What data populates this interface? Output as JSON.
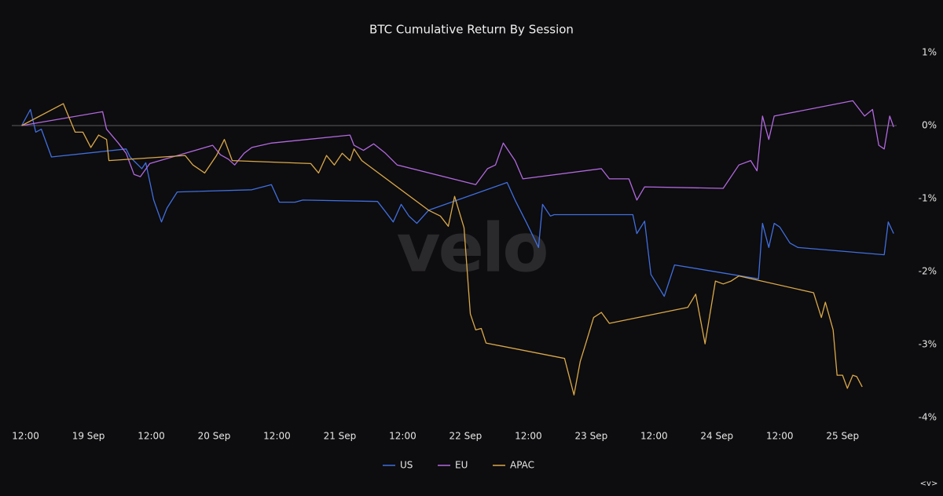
{
  "chart_data": {
    "type": "line",
    "title": "BTC Cumulative Return By Session",
    "watermark": "velo",
    "corner_label": "<v>",
    "xlim": [
      18.39,
      25.43
    ],
    "xticks": [
      {
        "value": 18.5,
        "label": "12:00"
      },
      {
        "value": 19,
        "label": "19 Sep"
      },
      {
        "value": 19.5,
        "label": "12:00"
      },
      {
        "value": 20,
        "label": "20 Sep"
      },
      {
        "value": 20.5,
        "label": "12:00"
      },
      {
        "value": 21,
        "label": "21 Sep"
      },
      {
        "value": 21.5,
        "label": "12:00"
      },
      {
        "value": 22,
        "label": "22 Sep"
      },
      {
        "value": 22.5,
        "label": "12:00"
      },
      {
        "value": 23,
        "label": "23 Sep"
      },
      {
        "value": 23.5,
        "label": "12:00"
      },
      {
        "value": 24,
        "label": "24 Sep"
      },
      {
        "value": 24.5,
        "label": "12:00"
      },
      {
        "value": 25,
        "label": "25 Sep"
      }
    ],
    "ylim": [
      -4,
      1
    ],
    "yticks": [
      {
        "value": 1,
        "label": "1%"
      },
      {
        "value": 0,
        "label": "0%"
      },
      {
        "value": -1,
        "label": "-1%"
      },
      {
        "value": -2,
        "label": "-2%"
      },
      {
        "value": -3,
        "label": "-3%"
      },
      {
        "value": -4,
        "label": "-4%"
      }
    ],
    "zero_line": true,
    "legend": "bottom",
    "series": [
      {
        "name": "US",
        "color": "#3f6fe0",
        "x": [
          18.469,
          18.538,
          18.581,
          18.625,
          18.706,
          19.3,
          19.331,
          19.425,
          19.456,
          19.519,
          19.581,
          19.625,
          19.706,
          20.3,
          20.456,
          20.519,
          20.644,
          20.706,
          21.3,
          21.363,
          21.425,
          21.488,
          21.55,
          21.613,
          21.706,
          22.331,
          22.394,
          22.488,
          22.581,
          22.613,
          22.675,
          22.706,
          23.331,
          23.363,
          23.425,
          23.475,
          23.581,
          23.663,
          24.331,
          24.363,
          24.413,
          24.456,
          24.5,
          24.581,
          24.644,
          25.331,
          25.363,
          25.406
        ],
        "values": [
          0,
          0.22,
          -0.09,
          -0.05,
          -0.43,
          -0.32,
          -0.43,
          -0.59,
          -0.51,
          -1.02,
          -1.32,
          -1.13,
          -0.91,
          -0.88,
          -0.81,
          -1.05,
          -1.05,
          -1.02,
          -1.04,
          -1.18,
          -1.32,
          -1.08,
          -1.24,
          -1.34,
          -1.16,
          -0.78,
          -1.02,
          -1.34,
          -1.67,
          -1.08,
          -1.24,
          -1.22,
          -1.22,
          -1.48,
          -1.31,
          -2.04,
          -2.34,
          -1.91,
          -2.1,
          -1.34,
          -1.67,
          -1.34,
          -1.39,
          -1.61,
          -1.67,
          -1.77,
          -1.32,
          -1.48
        ]
      },
      {
        "name": "EU",
        "color": "#b169e0",
        "x": [
          18.469,
          19.113,
          19.144,
          19.238,
          19.3,
          19.363,
          19.413,
          19.488,
          19.988,
          20.05,
          20.113,
          20.163,
          20.238,
          20.3,
          20.456,
          21.081,
          21.113,
          21.188,
          21.269,
          21.363,
          21.456,
          22.081,
          22.175,
          22.238,
          22.3,
          22.394,
          22.456,
          23.081,
          23.144,
          23.3,
          23.363,
          23.425,
          24.05,
          24.175,
          24.269,
          24.319,
          24.363,
          24.413,
          24.456,
          25.081,
          25.175,
          25.238,
          25.288,
          25.331,
          25.375,
          25.406
        ],
        "values": [
          0,
          0.19,
          -0.05,
          -0.24,
          -0.38,
          -0.67,
          -0.7,
          -0.52,
          -0.27,
          -0.4,
          -0.46,
          -0.54,
          -0.38,
          -0.3,
          -0.24,
          -0.13,
          -0.27,
          -0.34,
          -0.25,
          -0.38,
          -0.54,
          -0.81,
          -0.59,
          -0.54,
          -0.24,
          -0.48,
          -0.73,
          -0.59,
          -0.73,
          -0.73,
          -1.02,
          -0.84,
          -0.86,
          -0.54,
          -0.48,
          -0.62,
          0.13,
          -0.19,
          0.13,
          0.34,
          0.13,
          0.22,
          -0.27,
          -0.32,
          0.13,
          -0.02
        ]
      },
      {
        "name": "APAC",
        "color": "#d9a94a",
        "x": [
          18.469,
          18.8,
          18.894,
          18.956,
          19.019,
          19.081,
          19.144,
          19.163,
          19.769,
          19.831,
          19.925,
          20.019,
          20.081,
          20.144,
          20.769,
          20.831,
          20.894,
          20.956,
          21.019,
          21.081,
          21.113,
          21.175,
          21.706,
          21.8,
          21.863,
          21.913,
          21.988,
          22.038,
          22.081,
          22.125,
          22.163,
          22.788,
          22.863,
          22.913,
          22.956,
          23.019,
          23.081,
          23.144,
          23.769,
          23.831,
          23.906,
          23.988,
          24.05,
          24.113,
          24.175,
          24.769,
          24.831,
          24.863,
          24.925,
          24.956,
          25.0,
          25.038,
          25.081,
          25.113,
          25.156
        ],
        "values": [
          0,
          0.3,
          -0.09,
          -0.09,
          -0.3,
          -0.13,
          -0.19,
          -0.48,
          -0.41,
          -0.54,
          -0.65,
          -0.41,
          -0.19,
          -0.48,
          -0.52,
          -0.65,
          -0.41,
          -0.54,
          -0.38,
          -0.48,
          -0.32,
          -0.48,
          -1.16,
          -1.24,
          -1.38,
          -0.97,
          -1.4,
          -2.58,
          -2.8,
          -2.78,
          -2.98,
          -3.19,
          -3.69,
          -3.23,
          -2.99,
          -2.63,
          -2.56,
          -2.71,
          -2.49,
          -2.31,
          -2.99,
          -2.13,
          -2.17,
          -2.13,
          -2.06,
          -2.29,
          -2.63,
          -2.42,
          -2.8,
          -3.42,
          -3.42,
          -3.6,
          -3.42,
          -3.44,
          -3.58
        ]
      }
    ]
  }
}
